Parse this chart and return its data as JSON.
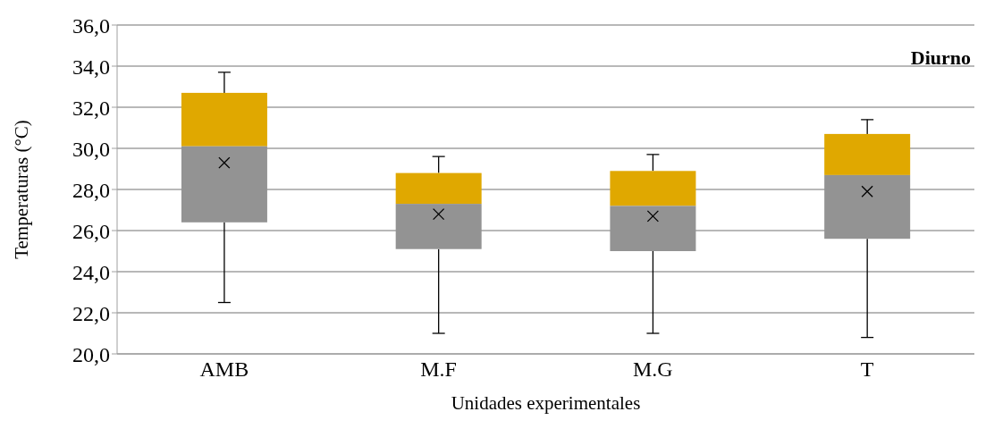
{
  "chart_data": {
    "type": "box",
    "title": "Diurno",
    "xlabel": "Unidades experimentales",
    "ylabel": "Temperaturas (°C)",
    "categories": [
      "AMB",
      "M.F",
      "M.G",
      "T"
    ],
    "series": [
      {
        "color": "#e0a800",
        "colors": [
          "#939393",
          "#939393",
          "#939393",
          "#939393"
        ],
        "boxes": [
          {
            "low": 22.5,
            "q1": 26.4,
            "median": 30.1,
            "q3": 32.7,
            "high": 33.7,
            "mean": 29.3
          },
          {
            "low": 21.0,
            "q1": 25.1,
            "median": 27.3,
            "q3": 28.8,
            "high": 29.6,
            "mean": 26.8
          },
          {
            "low": 21.0,
            "q1": 25.0,
            "median": 27.2,
            "q3": 28.9,
            "high": 29.7,
            "mean": 26.7
          },
          {
            "low": 20.8,
            "q1": 25.6,
            "median": 28.7,
            "q3": 30.7,
            "high": 31.4,
            "mean": 27.9
          }
        ]
      }
    ],
    "marker": "cross",
    "ylim": [
      20,
      36
    ],
    "yticks": [
      {
        "value": 20,
        "label": "20,0"
      },
      {
        "value": 22,
        "label": "22,0"
      },
      {
        "value": 24,
        "label": "24,0"
      },
      {
        "value": 26,
        "label": "26,0"
      },
      {
        "value": 28,
        "label": "28,0"
      },
      {
        "value": 30,
        "label": "30,0"
      },
      {
        "value": 32,
        "label": "32,0"
      },
      {
        "value": 34,
        "label": "34,0"
      },
      {
        "value": 36,
        "label": "36,0"
      }
    ],
    "grid": "y",
    "legend": false
  }
}
